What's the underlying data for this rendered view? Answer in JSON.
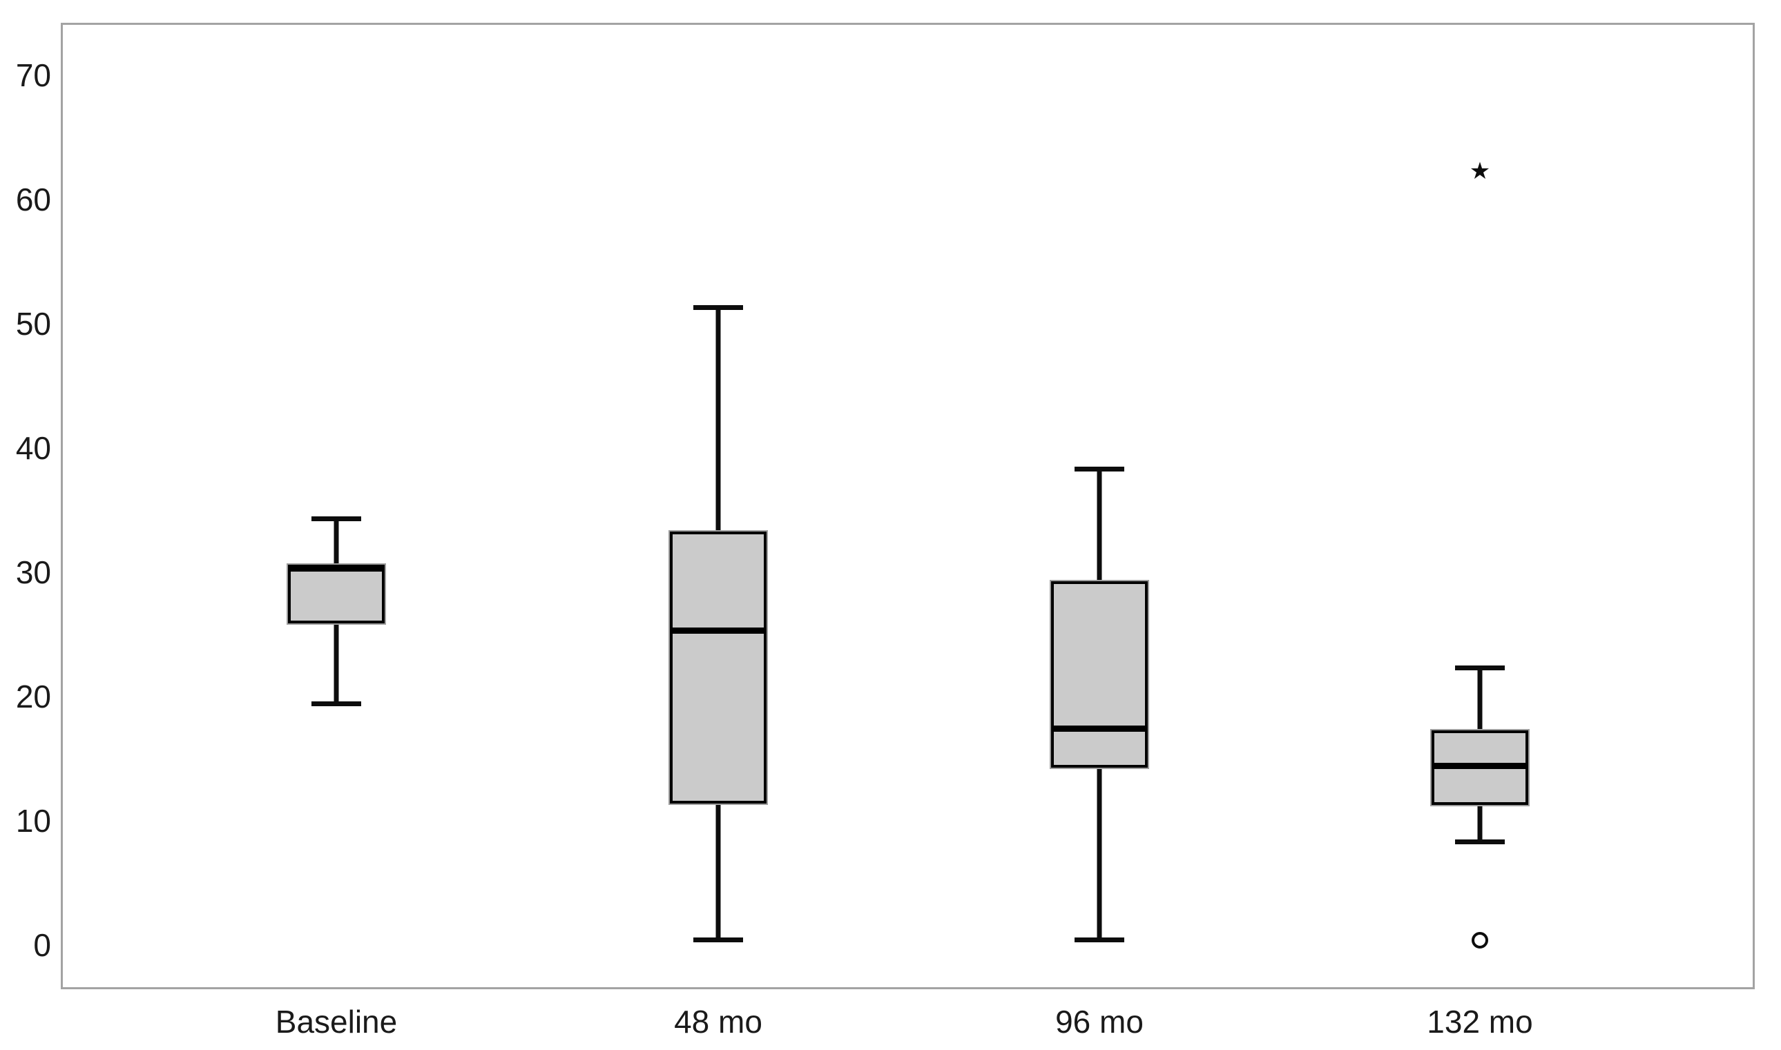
{
  "chart_data": {
    "type": "box",
    "title": "",
    "xlabel": "",
    "ylabel": "",
    "categories": [
      "Baseline",
      "48 mo",
      "96 mo",
      "132 mo"
    ],
    "y_axis": {
      "min": 0,
      "max": 70,
      "tick_step": 10,
      "ticks": [
        0,
        10,
        20,
        30,
        40,
        50,
        60,
        70
      ]
    },
    "boxes": [
      {
        "category": "Baseline",
        "whisker_low": 19.4,
        "q1": 25.9,
        "median": 30.3,
        "q3": 30.6,
        "whisker_high": 34.3,
        "outliers": [],
        "extremes": []
      },
      {
        "category": "48 mo",
        "whisker_low": 0.4,
        "q1": 11.4,
        "median": 25.3,
        "q3": 33.3,
        "whisker_high": 51.3,
        "outliers": [],
        "extremes": []
      },
      {
        "category": "96 mo",
        "whisker_low": 0.4,
        "q1": 14.3,
        "median": 17.4,
        "q3": 29.3,
        "whisker_high": 38.3,
        "outliers": [],
        "extremes": []
      },
      {
        "category": "132 mo",
        "whisker_low": 8.3,
        "q1": 11.3,
        "median": 14.4,
        "q3": 17.3,
        "whisker_high": 22.3,
        "outliers": [
          0.4
        ],
        "extremes": [
          62.3
        ]
      }
    ],
    "legend": null,
    "grid": false,
    "style": {
      "box_fill": "#cbcbcb",
      "line_color": "#000000",
      "frame_color": "#a3a3a3",
      "background": "#ffffff",
      "outlier_marker": "circle",
      "extreme_marker": "star"
    }
  }
}
